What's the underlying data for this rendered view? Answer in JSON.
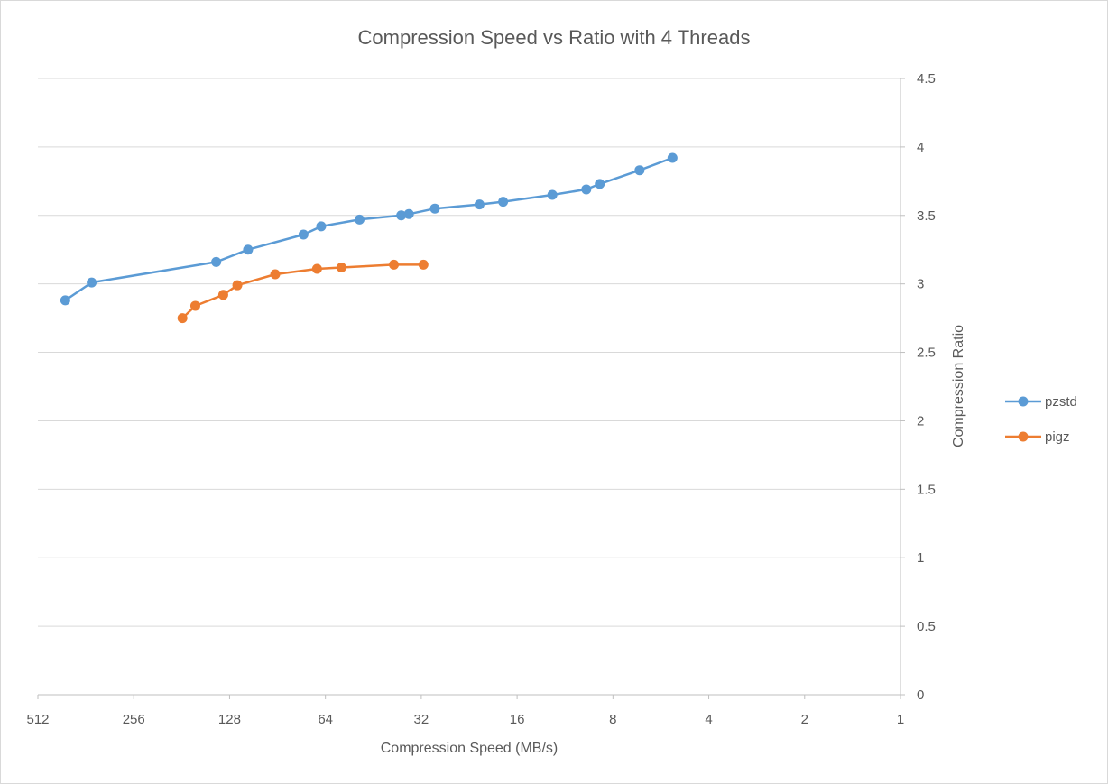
{
  "chart_data": {
    "type": "scatter",
    "title": "Compression Speed vs Ratio with 4 Threads",
    "xlabel": "Compression Speed (MB/s)",
    "ylabel": "Compression Ratio",
    "x_scale": "log2",
    "x_reversed": true,
    "xlim": [
      1,
      512
    ],
    "ylim": [
      0,
      4.5
    ],
    "x_ticks": [
      512,
      256,
      128,
      64,
      32,
      16,
      8,
      4,
      2,
      1
    ],
    "x_tick_labels": [
      "512",
      "256",
      "128",
      "64",
      "32",
      "16",
      "8",
      "4",
      "2",
      "1"
    ],
    "y_ticks": [
      0,
      0.5,
      1,
      1.5,
      2,
      2.5,
      3,
      3.5,
      4,
      4.5
    ],
    "y_tick_labels": [
      "0",
      "0.5",
      "1",
      "1.5",
      "2",
      "2.5",
      "3",
      "3.5",
      "4",
      "4.5"
    ],
    "y_axis_side": "right",
    "grid": "horizontal",
    "legend_position": "right",
    "series": [
      {
        "name": "pzstd",
        "color": "#5b9bd5",
        "x": [
          420,
          347,
          141,
          112,
          75,
          66,
          50,
          37,
          35,
          29,
          21,
          17.7,
          12.4,
          9.7,
          8.8,
          6.6,
          5.2
        ],
        "y": [
          2.88,
          3.01,
          3.16,
          3.25,
          3.36,
          3.42,
          3.47,
          3.5,
          3.51,
          3.55,
          3.58,
          3.6,
          3.65,
          3.69,
          3.73,
          3.83,
          3.92
        ]
      },
      {
        "name": "pigz",
        "color": "#ed7d31",
        "x": [
          180,
          164,
          134,
          121,
          92,
          68,
          57,
          39,
          31.5
        ],
        "y": [
          2.75,
          2.84,
          2.92,
          2.99,
          3.07,
          3.11,
          3.12,
          3.14,
          3.14
        ]
      }
    ]
  }
}
